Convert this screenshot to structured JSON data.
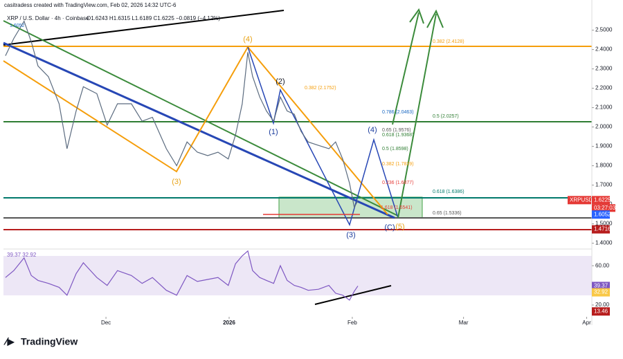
{
  "header": {
    "credit": "casitradess created with TradingView.com, Feb 02, 2026 14:32 UTC-6",
    "symbol": "XRP / U.S. Dollar · 4h · Coinbase",
    "ohlc": "O1.6243 H1.6315 L1.6189 C1.6225 −0.0819 (−4.12%)"
  },
  "footer": {
    "logo": "TradingView"
  },
  "chart_data": [
    {
      "type": "line",
      "title": "XRPUSD",
      "x": [
        -25.3,
        -23.2,
        -20.6,
        -18.8,
        -17.1,
        -14.5,
        -11.8,
        -9.8,
        -7.5,
        -5.7,
        -2.3,
        0.3,
        2.9,
        6.4,
        9.1,
        11.7,
        15.2,
        17.8,
        20.4,
        23,
        25.6,
        28.2,
        30.8,
        32.6,
        34.3,
        35.7,
        36.9,
        38.7,
        40.4,
        42.2,
        43.9,
        45.6,
        47.4,
        49.1,
        50.9,
        53.5,
        56.1,
        57.8,
        59.6,
        61.3,
        62.5,
        63.4
      ],
      "series": [
        {
          "name": "XRPUSD",
          "color": "#5b6b7f",
          "values": [
            2.368,
            2.457,
            2.546,
            2.44,
            2.315,
            2.26,
            2.12,
            1.888,
            2.083,
            2.208,
            2.172,
            2.01,
            2.12,
            2.12,
            2.03,
            2.05,
            1.888,
            1.8,
            1.923,
            1.87,
            1.852,
            1.87,
            1.835,
            1.959,
            2.119,
            2.386,
            2.261,
            2.155,
            2.083,
            2.03,
            2.155,
            2.083,
            2.066,
            1.977,
            1.923,
            1.905,
            1.888,
            1.923,
            1.834,
            1.71,
            1.585,
            1.62
          ]
        }
      ],
      "xlim": [
        -25.8,
        122.3
      ],
      "xticks": [
        {
          "value": 0,
          "label": "Dec"
        },
        {
          "value": 31,
          "label": "2026"
        },
        {
          "value": 62,
          "label": "Feb"
        },
        {
          "value": 90,
          "label": "Mar"
        },
        {
          "value": 121,
          "label": "Apr"
        }
      ],
      "ylim": [
        1.37,
        2.62
      ],
      "yticks": [
        {
          "value": 2.5,
          "label": "2.5000"
        },
        {
          "value": 2.4,
          "label": "2.4000"
        },
        {
          "value": 2.3,
          "label": "2.3000"
        },
        {
          "value": 2.2,
          "label": "2.2000"
        },
        {
          "value": 2.1,
          "label": "2.1000"
        },
        {
          "value": 2.0,
          "label": "2.0000"
        },
        {
          "value": 1.9,
          "label": "1.9000"
        },
        {
          "value": 1.8,
          "label": "1.8000"
        },
        {
          "value": 1.7,
          "label": "1.7000"
        },
        {
          "value": 1.6,
          "label": "1.6000"
        },
        {
          "value": 1.5,
          "label": "1.5000"
        },
        {
          "value": 1.4,
          "label": "1.4000"
        }
      ],
      "badges": [
        {
          "label": "XRPUSD",
          "value": 1.6225,
          "value_label": "1.6225",
          "timer": "03:27:03",
          "color": "#e53935"
        },
        {
          "value": 1.6052,
          "value_label": "1.6052",
          "color": "#2962ff"
        },
        {
          "value": 1.4716,
          "value_label": "1.4716",
          "color": "#b71c1c"
        }
      ],
      "annotations": [
        "0.382 (2.4128)",
        "0.382 (2.1752)",
        "0.786 (2.0463)",
        "0.5 (2.0257)",
        "0.65 (1.9576)",
        "0.618 (1.9368)",
        "0.5 (1.8598)",
        "0.382 (1.7829)",
        "0.236 (1.6877)",
        "0.618 (1.6386)",
        "1.618 (1.5541)",
        "0.65 (1.5336)",
        "(4)",
        "(3)",
        "(2)",
        "(1)",
        "(4)",
        "(3)",
        "(C)",
        "(5)",
        "1.6052"
      ]
    },
    {
      "type": "line",
      "title": "RSI",
      "x": [
        -25.3,
        -23.2,
        -20.6,
        -18.8,
        -17.1,
        -14.5,
        -11.8,
        -9.8,
        -7.5,
        -5.7,
        -2.3,
        0.3,
        2.9,
        6.4,
        9.1,
        11.7,
        15.2,
        17.8,
        20.4,
        23,
        25.6,
        28.2,
        30.8,
        32.6,
        34.3,
        35.7,
        36.9,
        38.7,
        40.4,
        42.2,
        43.9,
        45.6,
        47.4,
        49.1,
        50.9,
        53.5,
        56.1,
        57.8,
        59.6,
        61.3,
        62.5,
        63.4
      ],
      "series": [
        {
          "name": "RSI",
          "color": "#7e57c2",
          "values": [
            48,
            55,
            68,
            50,
            45,
            42,
            38,
            30,
            52,
            63,
            48,
            40,
            55,
            50,
            42,
            48,
            35,
            30,
            50,
            44,
            46,
            48,
            40,
            62,
            70,
            75,
            55,
            48,
            45,
            42,
            60,
            45,
            40,
            38,
            35,
            36,
            40,
            32,
            30,
            25,
            34,
            39.37
          ]
        }
      ],
      "xlim": [
        -25.8,
        122.3
      ],
      "ylim": [
        8,
        77
      ],
      "yticks": [
        {
          "value": 60,
          "label": "60.00"
        },
        {
          "value": 20,
          "label": "20.00"
        }
      ],
      "legend_text": "39.37  32.92",
      "badges": [
        {
          "value": 39.37,
          "value_label": "39.37",
          "color": "#7e57c2"
        },
        {
          "value": 32.92,
          "value_label": "32.92",
          "color": "#f9c846"
        },
        {
          "value": 13.46,
          "value_label": "13.46",
          "color": "#b71c1c"
        }
      ]
    }
  ]
}
